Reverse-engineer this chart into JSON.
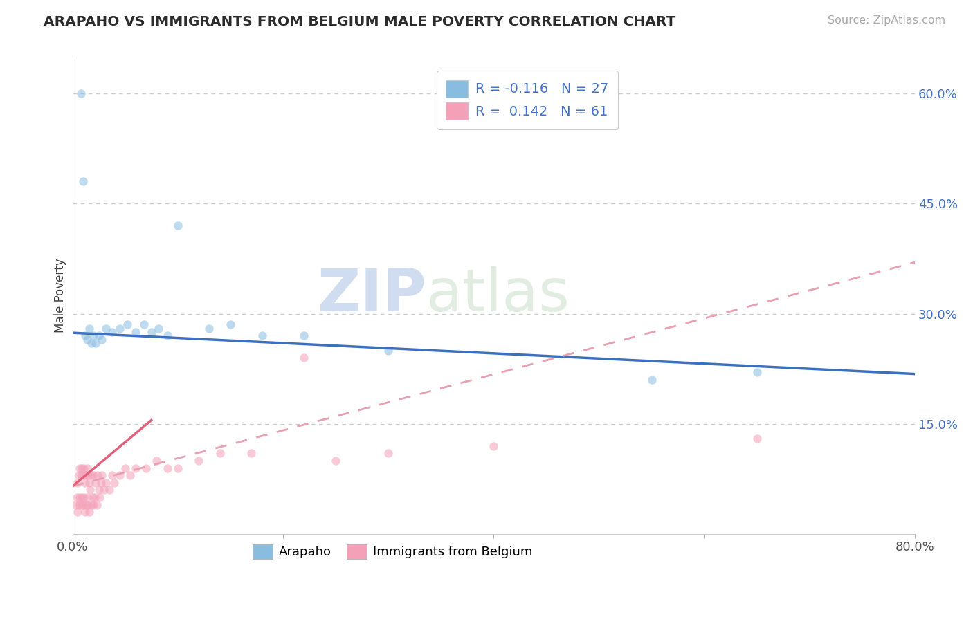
{
  "title": "ARAPAHO VS IMMIGRANTS FROM BELGIUM MALE POVERTY CORRELATION CHART",
  "source_text": "Source: ZipAtlas.com",
  "ylabel": "Male Poverty",
  "xlim": [
    0,
    0.8
  ],
  "ylim": [
    0,
    0.65
  ],
  "xtick_positions": [
    0.0,
    0.2,
    0.4,
    0.6,
    0.8
  ],
  "xticklabels": [
    "0.0%",
    "",
    "",
    "",
    "80.0%"
  ],
  "ytick_right_positions": [
    0.15,
    0.3,
    0.45,
    0.6
  ],
  "ytick_right_labels": [
    "15.0%",
    "30.0%",
    "45.0%",
    "60.0%"
  ],
  "arapaho_color": "#89bde0",
  "belgium_color": "#f4a0b8",
  "arapaho_line_color": "#3c6fbe",
  "belgium_line_color": "#e0607a",
  "belgium_dash_color": "#e8a0b0",
  "background_color": "#ffffff",
  "grid_color": "#cccccc",
  "marker_size": 80,
  "marker_alpha": 0.55,
  "arapaho_x": [
    0.008,
    0.01,
    0.012,
    0.014,
    0.016,
    0.018,
    0.02,
    0.022,
    0.025,
    0.028,
    0.032,
    0.038,
    0.045,
    0.052,
    0.06,
    0.068,
    0.075,
    0.082,
    0.09,
    0.1,
    0.13,
    0.15,
    0.18,
    0.22,
    0.3,
    0.55,
    0.65
  ],
  "arapaho_y": [
    0.6,
    0.48,
    0.27,
    0.265,
    0.28,
    0.26,
    0.27,
    0.26,
    0.27,
    0.265,
    0.28,
    0.275,
    0.28,
    0.285,
    0.275,
    0.285,
    0.275,
    0.28,
    0.27,
    0.42,
    0.28,
    0.285,
    0.27,
    0.27,
    0.25,
    0.21,
    0.22
  ],
  "belgium_x": [
    0.003,
    0.004,
    0.005,
    0.005,
    0.006,
    0.006,
    0.007,
    0.007,
    0.008,
    0.008,
    0.009,
    0.009,
    0.01,
    0.01,
    0.011,
    0.011,
    0.012,
    0.012,
    0.013,
    0.013,
    0.014,
    0.014,
    0.015,
    0.015,
    0.016,
    0.016,
    0.017,
    0.018,
    0.018,
    0.019,
    0.02,
    0.02,
    0.021,
    0.022,
    0.023,
    0.024,
    0.025,
    0.026,
    0.027,
    0.028,
    0.03,
    0.032,
    0.035,
    0.038,
    0.04,
    0.045,
    0.05,
    0.055,
    0.06,
    0.07,
    0.08,
    0.09,
    0.1,
    0.12,
    0.14,
    0.17,
    0.22,
    0.25,
    0.3,
    0.4,
    0.65
  ],
  "belgium_y": [
    0.04,
    0.05,
    0.03,
    0.07,
    0.04,
    0.08,
    0.05,
    0.09,
    0.04,
    0.08,
    0.05,
    0.09,
    0.04,
    0.08,
    0.05,
    0.09,
    0.03,
    0.07,
    0.04,
    0.08,
    0.05,
    0.09,
    0.04,
    0.08,
    0.03,
    0.07,
    0.06,
    0.04,
    0.08,
    0.05,
    0.04,
    0.08,
    0.05,
    0.07,
    0.04,
    0.08,
    0.06,
    0.05,
    0.07,
    0.08,
    0.06,
    0.07,
    0.06,
    0.08,
    0.07,
    0.08,
    0.09,
    0.08,
    0.09,
    0.09,
    0.1,
    0.09,
    0.09,
    0.1,
    0.11,
    0.11,
    0.24,
    0.1,
    0.11,
    0.12,
    0.13
  ],
  "arapaho_line_x0": 0.0,
  "arapaho_line_y0": 0.274,
  "arapaho_line_x1": 0.8,
  "arapaho_line_y1": 0.218,
  "belgium_line_x0": 0.0,
  "belgium_line_y0": 0.065,
  "belgium_line_x1": 0.8,
  "belgium_line_y1": 0.37,
  "watermark_text": "ZIPatlas",
  "watermark_zip": "ZIP",
  "watermark_atlas": "atlas"
}
